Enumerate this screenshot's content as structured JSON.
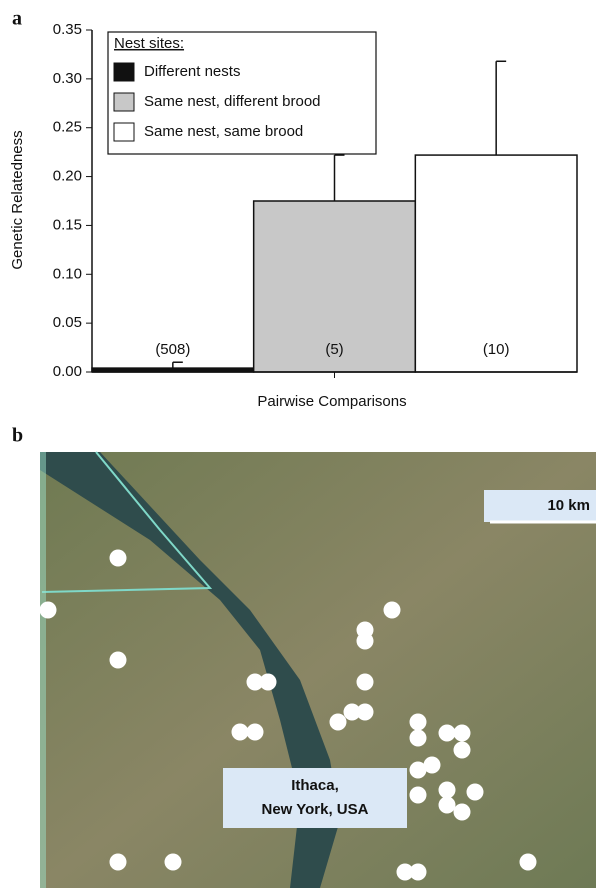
{
  "panels": [
    "a",
    "b"
  ],
  "chart_data": {
    "type": "bar",
    "y_label": "Genetic Relatedness",
    "x_label": "Pairwise Comparisons",
    "legend_title": "Nest sites:",
    "categories": [
      null
    ],
    "series": [
      {
        "name": "Different nests",
        "color": "#111111",
        "values": [
          0.004
        ],
        "errors": [
          0.006
        ],
        "annotation": "(508)"
      },
      {
        "name": "Same nest, different brood",
        "color": "#c8c8c8",
        "values": [
          0.175
        ],
        "errors": [
          0.047
        ],
        "annotation": "(5)"
      },
      {
        "name": "Same nest, same brood",
        "color": "#ffffff",
        "values": [
          0.222
        ],
        "errors": [
          0.096
        ],
        "annotation": "(10)"
      }
    ],
    "ylim": [
      0,
      0.35
    ],
    "yticks": [
      {
        "value": 0,
        "label": "0.00"
      },
      {
        "value": 0.05,
        "label": "0.05"
      },
      {
        "value": 0.1,
        "label": "0.10"
      },
      {
        "value": 0.15,
        "label": "0.15"
      },
      {
        "value": 0.2,
        "label": "0.20"
      },
      {
        "value": 0.25,
        "label": "0.25"
      },
      {
        "value": 0.3,
        "label": "0.30"
      },
      {
        "value": 0.35,
        "label": "0.35"
      }
    ],
    "legend": "top-left"
  },
  "map": {
    "scale": "10 km",
    "place": [
      "Ithaca,",
      "New York, USA"
    ]
  }
}
